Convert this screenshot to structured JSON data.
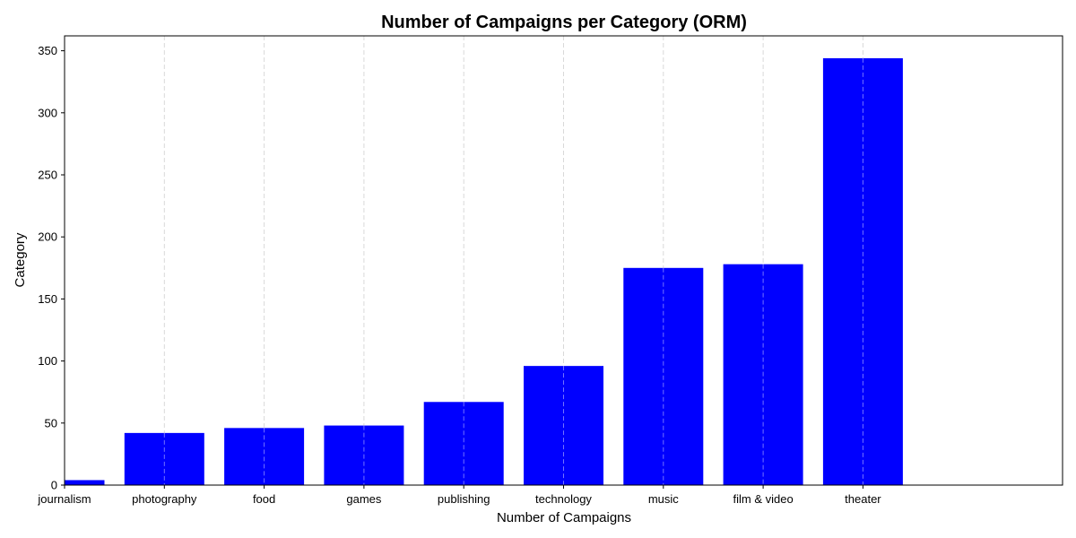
{
  "chart_data": {
    "type": "bar",
    "title": "Number of Campaigns per Category (ORM)",
    "xlabel": "Number of Campaigns",
    "ylabel": "Category",
    "categories": [
      "journalism",
      "photography",
      "food",
      "games",
      "publishing",
      "technology",
      "music",
      "film & video",
      "theater"
    ],
    "values": [
      4,
      42,
      46,
      48,
      67,
      96,
      175,
      178,
      344
    ],
    "ylim": [
      0,
      362
    ],
    "yticks": [
      0,
      50,
      100,
      150,
      200,
      250,
      300,
      350
    ],
    "grid": "vertical dashed",
    "bar_color": "#0000ff"
  }
}
